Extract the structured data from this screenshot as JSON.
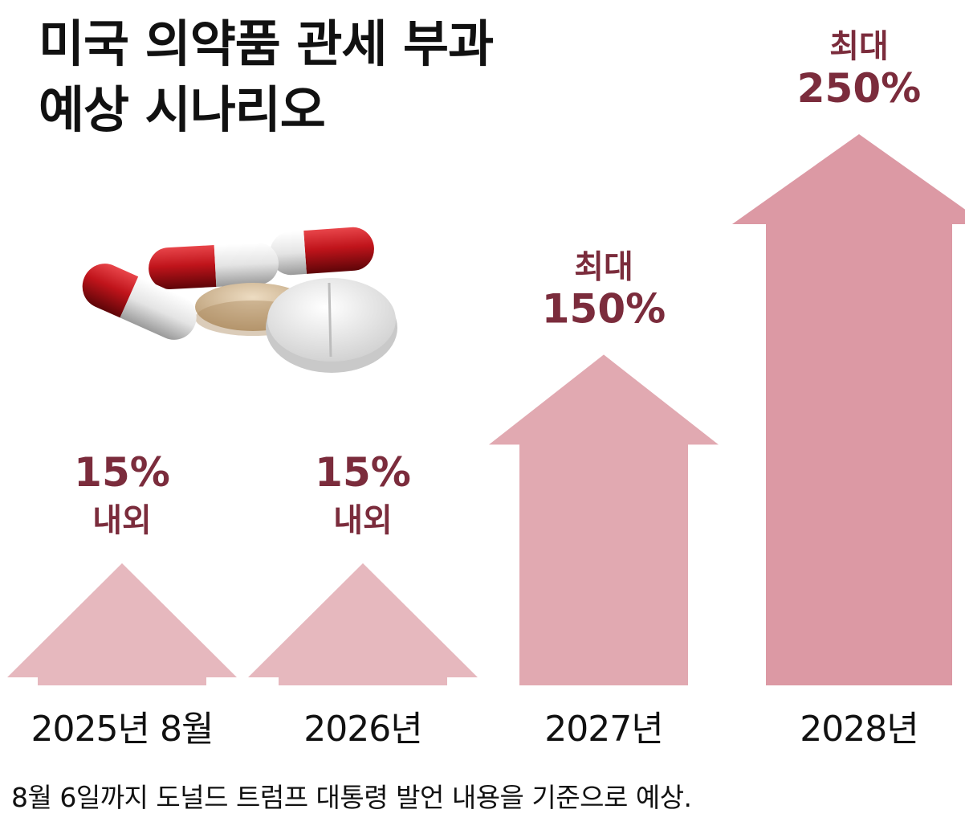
{
  "title": {
    "line1": "미국 의약품 관세 부과",
    "line2": "예상 시나리오"
  },
  "footnote": "8월 6일까지 도널드 트럼프 대통령 발언 내용을 기준으로 예상.",
  "colors": {
    "arrow_light": "#e6b8be",
    "arrow_mid": "#e1a9b1",
    "arrow_dark": "#dc99a4",
    "label": "#7b2c3c",
    "pill_red": "#c0141b",
    "pill_white": "#ededed",
    "tablet_tan": "#d6bc98"
  },
  "chart_data": {
    "type": "bar",
    "title": "미국 의약품 관세 부과 예상 시나리오",
    "categories": [
      "2025년 8월",
      "2026년",
      "2027년",
      "2028년"
    ],
    "values": [
      15,
      15,
      150,
      250
    ],
    "unit": "%",
    "value_labels": [
      {
        "value": "15%",
        "qualifier": "내외"
      },
      {
        "value": "15%",
        "qualifier": "내외"
      },
      {
        "prefix": "최대",
        "value": "150%"
      },
      {
        "prefix": "최대",
        "value": "250%"
      }
    ],
    "xlabel": "",
    "ylabel": "",
    "grid": false,
    "legend": "none"
  }
}
